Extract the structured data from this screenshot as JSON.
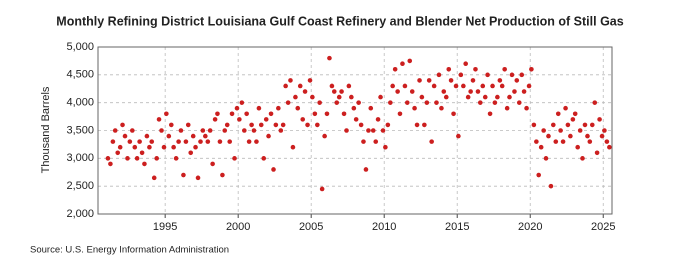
{
  "chart_data": {
    "type": "scatter",
    "title": "Monthly Refining District Louisiana Gulf Coast Refinery and Blender Net Production of Still Gas",
    "y_label": "Thousand Barrels",
    "source": "Source: U.S. Energy Information Administration",
    "color": "#cc1f1f",
    "grid": true,
    "xlim": [
      1990.4,
      2025.6
    ],
    "xticks": [
      1995,
      2000,
      2005,
      2010,
      2015,
      2020,
      2025
    ],
    "ylim": [
      2000,
      5000
    ],
    "yticks": [
      {
        "value": 2000,
        "label": "2,000"
      },
      {
        "value": 2500,
        "label": "2,500"
      },
      {
        "value": 3000,
        "label": "3,000"
      },
      {
        "value": 3500,
        "label": "3,500"
      },
      {
        "value": 4000,
        "label": "4,000"
      },
      {
        "value": 4500,
        "label": "4,500"
      },
      {
        "value": 5000,
        "label": "5,000"
      }
    ],
    "x": [
      1991.08,
      1991.25,
      1991.42,
      1991.58,
      1991.75,
      1991.92,
      1992.08,
      1992.25,
      1992.42,
      1992.58,
      1992.75,
      1992.92,
      1993.08,
      1993.25,
      1993.42,
      1993.58,
      1993.75,
      1993.92,
      1994.08,
      1994.25,
      1994.42,
      1994.58,
      1994.75,
      1994.92,
      1995.08,
      1995.25,
      1995.42,
      1995.58,
      1995.75,
      1995.92,
      1996.08,
      1996.25,
      1996.42,
      1996.58,
      1996.75,
      1996.92,
      1997.08,
      1997.25,
      1997.42,
      1997.58,
      1997.75,
      1997.92,
      1998.08,
      1998.25,
      1998.42,
      1998.58,
      1998.75,
      1998.92,
      1999.08,
      1999.25,
      1999.42,
      1999.58,
      1999.75,
      1999.92,
      2000.08,
      2000.25,
      2000.42,
      2000.58,
      2000.75,
      2000.92,
      2001.08,
      2001.25,
      2001.42,
      2001.58,
      2001.75,
      2001.92,
      2002.08,
      2002.25,
      2002.42,
      2002.58,
      2002.75,
      2002.92,
      2003.08,
      2003.25,
      2003.42,
      2003.58,
      2003.75,
      2003.92,
      2004.08,
      2004.25,
      2004.42,
      2004.58,
      2004.75,
      2004.92,
      2005.08,
      2005.25,
      2005.42,
      2005.58,
      2005.75,
      2005.92,
      2006.08,
      2006.25,
      2006.42,
      2006.58,
      2006.75,
      2006.92,
      2007.08,
      2007.25,
      2007.42,
      2007.58,
      2007.75,
      2007.92,
      2008.08,
      2008.25,
      2008.42,
      2008.58,
      2008.75,
      2008.92,
      2009.08,
      2009.25,
      2009.42,
      2009.58,
      2009.75,
      2009.92,
      2010.08,
      2010.25,
      2010.42,
      2010.58,
      2010.75,
      2010.92,
      2011.08,
      2011.25,
      2011.42,
      2011.58,
      2011.75,
      2011.92,
      2012.08,
      2012.25,
      2012.42,
      2012.58,
      2012.75,
      2012.92,
      2013.08,
      2013.25,
      2013.42,
      2013.58,
      2013.75,
      2013.92,
      2014.08,
      2014.25,
      2014.42,
      2014.58,
      2014.75,
      2014.92,
      2015.08,
      2015.25,
      2015.42,
      2015.58,
      2015.75,
      2015.92,
      2016.08,
      2016.25,
      2016.42,
      2016.58,
      2016.75,
      2016.92,
      2017.08,
      2017.25,
      2017.42,
      2017.58,
      2017.75,
      2017.92,
      2018.08,
      2018.25,
      2018.42,
      2018.58,
      2018.75,
      2018.92,
      2019.08,
      2019.25,
      2019.42,
      2019.58,
      2019.75,
      2019.92,
      2020.08,
      2020.25,
      2020.42,
      2020.58,
      2020.75,
      2020.92,
      2021.08,
      2021.25,
      2021.42,
      2021.58,
      2021.75,
      2021.92,
      2022.08,
      2022.25,
      2022.42,
      2022.58,
      2022.75,
      2022.92,
      2023.08,
      2023.25,
      2023.42,
      2023.58,
      2023.75,
      2023.92,
      2024.08,
      2024.25,
      2024.42,
      2024.58,
      2024.75,
      2024.92,
      2025.08,
      2025.25,
      2025.42
    ],
    "values": [
      3000,
      2900,
      3300,
      3500,
      3100,
      3200,
      3600,
      3400,
      3000,
      3300,
      3500,
      3200,
      3000,
      3300,
      3100,
      2900,
      3400,
      3200,
      3300,
      2650,
      3000,
      3700,
      3500,
      3200,
      3800,
      3400,
      3600,
      3200,
      3000,
      3300,
      3500,
      2700,
      3300,
      3600,
      3100,
      3400,
      3200,
      2650,
      3300,
      3500,
      3400,
      3300,
      3500,
      2900,
      3700,
      3800,
      3300,
      2700,
      3500,
      3600,
      3300,
      3800,
      3000,
      3900,
      3700,
      4000,
      3500,
      3800,
      3300,
      3600,
      3500,
      3300,
      3900,
      3600,
      3000,
      3700,
      3400,
      3800,
      2800,
      3600,
      3900,
      3500,
      3600,
      4300,
      4000,
      4400,
      3200,
      4100,
      3900,
      4300,
      3700,
      4200,
      3600,
      4400,
      4100,
      3800,
      3600,
      4000,
      2450,
      3400,
      3800,
      4800,
      4300,
      4200,
      4000,
      4100,
      4200,
      3800,
      3500,
      4300,
      4100,
      3900,
      3700,
      4000,
      3600,
      3300,
      2800,
      3500,
      3900,
      3500,
      3300,
      3700,
      4100,
      3500,
      3200,
      3600,
      4000,
      4300,
      4600,
      4200,
      3800,
      4700,
      4300,
      4000,
      4750,
      4200,
      3900,
      3600,
      4400,
      4100,
      3600,
      4000,
      4400,
      3300,
      4300,
      4000,
      4500,
      3900,
      4200,
      4100,
      4600,
      4400,
      3800,
      4300,
      3400,
      4500,
      4300,
      4700,
      4100,
      4200,
      4400,
      4600,
      4200,
      4000,
      4300,
      4100,
      4500,
      3800,
      4300,
      4000,
      4100,
      4400,
      4300,
      4600,
      3900,
      4100,
      4500,
      4200,
      4400,
      4000,
      4500,
      4200,
      3900,
      4300,
      4600,
      3600,
      3300,
      2700,
      3200,
      3500,
      3000,
      3400,
      2500,
      3600,
      3300,
      3800,
      3500,
      3300,
      3900,
      3600,
      3400,
      3700,
      3800,
      3200,
      3500,
      3000,
      3600,
      3400,
      3300,
      3600,
      4000,
      3100,
      3700,
      3400,
      3500,
      3300,
      3200
    ]
  }
}
